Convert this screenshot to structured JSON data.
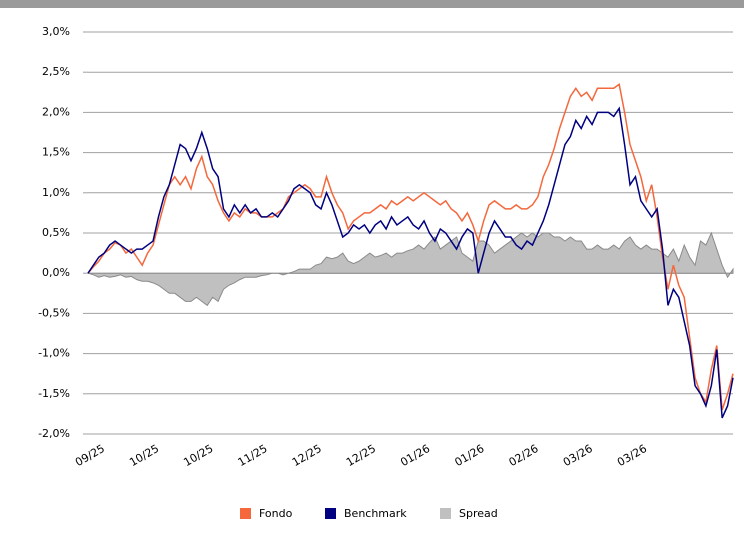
{
  "chart_data": {
    "type": "line",
    "categories": [
      "09/25",
      null,
      null,
      null,
      null,
      null,
      null,
      null,
      null,
      null,
      "10/25",
      null,
      null,
      null,
      null,
      null,
      null,
      null,
      null,
      null,
      "10/25",
      null,
      null,
      null,
      null,
      null,
      null,
      null,
      null,
      null,
      "11/25",
      null,
      null,
      null,
      null,
      null,
      null,
      null,
      null,
      null,
      "12/25",
      null,
      null,
      null,
      null,
      null,
      null,
      null,
      null,
      null,
      "12/25",
      null,
      null,
      null,
      null,
      null,
      null,
      null,
      null,
      null,
      "01/26",
      null,
      null,
      null,
      null,
      null,
      null,
      null,
      null,
      null,
      "01/26",
      null,
      null,
      null,
      null,
      null,
      null,
      null,
      null,
      null,
      "02/26",
      null,
      null,
      null,
      null,
      null,
      null,
      null,
      null,
      null,
      "03/26",
      null,
      null,
      null,
      null,
      null,
      null,
      null,
      null,
      null,
      "03/26",
      null,
      null,
      null,
      null,
      null,
      null,
      null,
      null,
      null,
      null,
      null,
      null,
      null,
      null,
      null,
      null,
      null,
      null,
      null
    ],
    "series": [
      {
        "name": "Fondo",
        "color": "#f4683c",
        "style": "line",
        "values": [
          0,
          0.08,
          0.15,
          0.25,
          0.3,
          0.38,
          0.35,
          0.25,
          0.3,
          0.2,
          0.1,
          0.25,
          0.35,
          0.6,
          0.85,
          1.1,
          1.2,
          1.1,
          1.2,
          1.05,
          1.3,
          1.45,
          1.2,
          1.1,
          0.9,
          0.75,
          0.65,
          0.75,
          0.7,
          0.8,
          0.75,
          0.75,
          0.7,
          0.7,
          0.7,
          0.75,
          0.8,
          0.95,
          1.0,
          1.05,
          1.1,
          1.05,
          0.95,
          0.95,
          1.2,
          1.0,
          0.85,
          0.75,
          0.55,
          0.65,
          0.7,
          0.75,
          0.75,
          0.8,
          0.85,
          0.8,
          0.9,
          0.85,
          0.9,
          0.95,
          0.9,
          0.95,
          1.0,
          0.95,
          0.9,
          0.85,
          0.9,
          0.8,
          0.75,
          0.65,
          0.75,
          0.6,
          0.4,
          0.65,
          0.85,
          0.9,
          0.85,
          0.8,
          0.8,
          0.85,
          0.8,
          0.8,
          0.85,
          0.95,
          1.2,
          1.35,
          1.55,
          1.8,
          2.0,
          2.2,
          2.3,
          2.2,
          2.25,
          2.15,
          2.3,
          2.3,
          2.3,
          2.3,
          2.35,
          2.0,
          1.6,
          1.4,
          1.2,
          0.9,
          1.1,
          0.7,
          0.2,
          -0.2,
          0.1,
          -0.15,
          -0.3,
          -0.8,
          -1.3,
          -1.5,
          -1.6,
          -1.2,
          -0.9,
          -1.7,
          -1.5,
          -1.25
        ]
      },
      {
        "name": "Benchmark",
        "color": "#000080",
        "style": "line",
        "values": [
          0,
          0.1,
          0.2,
          0.25,
          0.35,
          0.4,
          0.35,
          0.3,
          0.25,
          0.3,
          0.3,
          0.35,
          0.4,
          0.7,
          0.95,
          1.1,
          1.35,
          1.6,
          1.55,
          1.4,
          1.55,
          1.75,
          1.55,
          1.3,
          1.2,
          0.8,
          0.7,
          0.85,
          0.75,
          0.85,
          0.75,
          0.8,
          0.7,
          0.7,
          0.75,
          0.7,
          0.8,
          0.9,
          1.05,
          1.1,
          1.05,
          1.0,
          0.85,
          0.8,
          1.0,
          0.85,
          0.65,
          0.45,
          0.5,
          0.6,
          0.55,
          0.6,
          0.5,
          0.6,
          0.65,
          0.55,
          0.7,
          0.6,
          0.65,
          0.7,
          0.6,
          0.55,
          0.65,
          0.5,
          0.4,
          0.55,
          0.5,
          0.4,
          0.3,
          0.45,
          0.55,
          0.5,
          0.0,
          0.25,
          0.5,
          0.65,
          0.55,
          0.45,
          0.45,
          0.35,
          0.3,
          0.4,
          0.35,
          0.5,
          0.65,
          0.85,
          1.1,
          1.35,
          1.6,
          1.7,
          1.9,
          1.8,
          1.95,
          1.85,
          2.0,
          2.0,
          2.0,
          1.95,
          2.05,
          1.6,
          1.1,
          1.2,
          0.9,
          0.8,
          0.7,
          0.8,
          0.3,
          -0.4,
          -0.2,
          -0.3,
          -0.6,
          -0.9,
          -1.4,
          -1.5,
          -1.65,
          -1.4,
          -0.95,
          -1.8,
          -1.65,
          -1.3
        ]
      },
      {
        "name": "Spread",
        "color": "#c0c0c0",
        "style": "area",
        "values": [
          0,
          -0.02,
          -0.05,
          -0.03,
          -0.05,
          -0.04,
          -0.02,
          -0.05,
          -0.04,
          -0.08,
          -0.1,
          -0.1,
          -0.12,
          -0.15,
          -0.2,
          -0.25,
          -0.25,
          -0.3,
          -0.35,
          -0.35,
          -0.3,
          -0.35,
          -0.4,
          -0.3,
          -0.35,
          -0.2,
          -0.15,
          -0.12,
          -0.08,
          -0.05,
          -0.05,
          -0.05,
          -0.03,
          -0.02,
          0,
          0,
          -0.02,
          0,
          0.02,
          0.05,
          0.05,
          0.05,
          0.1,
          0.12,
          0.2,
          0.18,
          0.2,
          0.25,
          0.15,
          0.12,
          0.15,
          0.2,
          0.25,
          0.2,
          0.22,
          0.25,
          0.2,
          0.25,
          0.25,
          0.28,
          0.3,
          0.35,
          0.3,
          0.38,
          0.45,
          0.3,
          0.35,
          0.4,
          0.45,
          0.25,
          0.2,
          0.15,
          0.4,
          0.4,
          0.35,
          0.25,
          0.3,
          0.35,
          0.4,
          0.45,
          0.5,
          0.45,
          0.5,
          0.45,
          0.5,
          0.5,
          0.45,
          0.45,
          0.4,
          0.45,
          0.4,
          0.4,
          0.3,
          0.3,
          0.35,
          0.3,
          0.3,
          0.35,
          0.3,
          0.4,
          0.45,
          0.35,
          0.3,
          0.35,
          0.3,
          0.3,
          0.25,
          0.2,
          0.3,
          0.15,
          0.35,
          0.2,
          0.1,
          0.4,
          0.35,
          0.5,
          0.3,
          0.1,
          -0.05,
          0.05
        ]
      }
    ],
    "ylim": [
      -2,
      3
    ],
    "yticks": [
      {
        "value": -2,
        "label": "-2,0%"
      },
      {
        "value": -1.5,
        "label": "-1,5%"
      },
      {
        "value": -1,
        "label": "-1,0%"
      },
      {
        "value": -0.5,
        "label": "-0,5%"
      },
      {
        "value": 0,
        "label": "0,0%"
      },
      {
        "value": 0.5,
        "label": "0,5%"
      },
      {
        "value": 1,
        "label": "1,0%"
      },
      {
        "value": 1.5,
        "label": "1,5%"
      },
      {
        "value": 2,
        "label": "2,0%"
      },
      {
        "value": 2.5,
        "label": "2,5%"
      },
      {
        "value": 3,
        "label": "3,0%"
      }
    ],
    "grid": true
  }
}
